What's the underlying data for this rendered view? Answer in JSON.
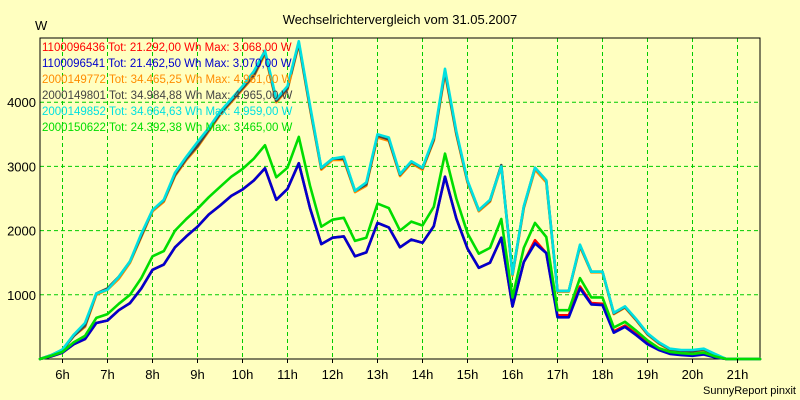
{
  "chart_data": {
    "type": "line",
    "title": "Wechselrichtervergleich vom 31.05.2007",
    "ylabel": "W",
    "footer": "SunnyReport pinxit",
    "xlim": [
      5.5,
      21.5
    ],
    "ylim": [
      0,
      5000
    ],
    "yticks": [
      1000,
      2000,
      3000,
      4000
    ],
    "xticks": [
      {
        "x": 6,
        "label": "6h"
      },
      {
        "x": 7,
        "label": "7h"
      },
      {
        "x": 8,
        "label": "8h"
      },
      {
        "x": 9,
        "label": "9h"
      },
      {
        "x": 10,
        "label": "10h"
      },
      {
        "x": 11,
        "label": "11h"
      },
      {
        "x": 12,
        "label": "12h"
      },
      {
        "x": 13,
        "label": "13h"
      },
      {
        "x": 14,
        "label": "14h"
      },
      {
        "x": 15,
        "label": "15h"
      },
      {
        "x": 16,
        "label": "16h"
      },
      {
        "x": 17,
        "label": "17h"
      },
      {
        "x": 18,
        "label": "18h"
      },
      {
        "x": 19,
        "label": "19h"
      },
      {
        "x": 20,
        "label": "20h"
      },
      {
        "x": 21,
        "label": "21h"
      }
    ],
    "grid": true,
    "legend": "top-left",
    "x": [
      5.5,
      5.75,
      6,
      6.25,
      6.5,
      6.75,
      7,
      7.25,
      7.5,
      7.75,
      8,
      8.25,
      8.5,
      8.75,
      9,
      9.25,
      9.5,
      9.75,
      10,
      10.25,
      10.5,
      10.75,
      11,
      11.25,
      11.5,
      11.75,
      12,
      12.25,
      12.5,
      12.75,
      13,
      13.25,
      13.5,
      13.75,
      14,
      14.25,
      14.5,
      14.75,
      15,
      15.25,
      15.5,
      15.75,
      16,
      16.25,
      16.5,
      16.75,
      17,
      17.25,
      17.5,
      17.75,
      18,
      18.25,
      18.5,
      18.75,
      19,
      19.25,
      19.5,
      19.75,
      20,
      20.25,
      20.5,
      20.75,
      21,
      21.25,
      21.5
    ],
    "series": [
      {
        "name": "1100096436 Tot: 21.292,00 Wh Max: 3.068,00 W",
        "color": "#ff0000",
        "values": [
          0,
          40,
          100,
          230,
          310,
          560,
          600,
          760,
          870,
          1100,
          1390,
          1470,
          1740,
          1910,
          2060,
          2250,
          2390,
          2540,
          2640,
          2780,
          2970,
          2480,
          2650,
          3050,
          2350,
          1790,
          1890,
          1910,
          1600,
          1660,
          2120,
          2050,
          1740,
          1860,
          1810,
          2070,
          2840,
          2190,
          1720,
          1420,
          1500,
          1890,
          820,
          1510,
          1850,
          1650,
          680,
          680,
          1130,
          870,
          860,
          430,
          520,
          390,
          250,
          150,
          90,
          70,
          60,
          80,
          30,
          0,
          0,
          0,
          0
        ]
      },
      {
        "name": "1100096541 Tot: 21.462,50 Wh Max: 3.070,00 W",
        "color": "#0000cc",
        "values": [
          0,
          40,
          100,
          230,
          310,
          560,
          600,
          760,
          870,
          1100,
          1390,
          1470,
          1740,
          1910,
          2060,
          2250,
          2390,
          2540,
          2640,
          2780,
          2970,
          2480,
          2650,
          3050,
          2350,
          1790,
          1890,
          1910,
          1600,
          1660,
          2120,
          2050,
          1740,
          1860,
          1810,
          2070,
          2840,
          2190,
          1720,
          1420,
          1500,
          1890,
          820,
          1510,
          1800,
          1650,
          650,
          650,
          1100,
          850,
          840,
          410,
          500,
          370,
          230,
          140,
          80,
          60,
          50,
          70,
          25,
          0,
          0,
          0,
          0
        ]
      },
      {
        "name": "2000149772 Tot: 34.465,25 Wh Max: 4.961,00 W",
        "color": "#ff8c00",
        "values": [
          0,
          60,
          140,
          360,
          500,
          1000,
          1080,
          1250,
          1500,
          1900,
          2300,
          2450,
          2850,
          3100,
          3300,
          3550,
          3800,
          4000,
          4200,
          4400,
          4750,
          4000,
          4200,
          4900,
          3900,
          2950,
          3100,
          3100,
          2600,
          2700,
          3450,
          3400,
          2850,
          3050,
          2950,
          3400,
          4450,
          3500,
          2750,
          2300,
          2450,
          3000,
          1300,
          2350,
          2950,
          2750,
          1050,
          1050,
          1750,
          1350,
          1350,
          700,
          800,
          600,
          380,
          240,
          140,
          120,
          110,
          140,
          60,
          0,
          0,
          0,
          0
        ]
      },
      {
        "name": "2000149801 Tot: 34.984,88 Wh Max: 4.965,00 W",
        "color": "#444444",
        "values": [
          0,
          60,
          140,
          360,
          520,
          1020,
          1100,
          1280,
          1520,
          1920,
          2320,
          2470,
          2870,
          3120,
          3320,
          3570,
          3820,
          4020,
          4220,
          4420,
          4780,
          4020,
          4220,
          4920,
          3920,
          2970,
          3120,
          3120,
          2620,
          2720,
          3480,
          3420,
          2870,
          3070,
          2970,
          3420,
          4480,
          3520,
          2770,
          2320,
          2470,
          3020,
          1320,
          2370,
          2980,
          2780,
          1060,
          1060,
          1770,
          1360,
          1360,
          710,
          810,
          610,
          390,
          250,
          150,
          130,
          120,
          150,
          70,
          0,
          0,
          0,
          0
        ]
      },
      {
        "name": "2000149852 Tot: 34.664,63 Wh Max: 4.959,00 W",
        "color": "#00e0e0",
        "values": [
          0,
          60,
          150,
          380,
          560,
          1020,
          1080,
          1280,
          1520,
          1950,
          2320,
          2480,
          2900,
          3150,
          3380,
          3600,
          3850,
          4050,
          4250,
          4480,
          4800,
          4050,
          4250,
          4950,
          3950,
          2980,
          3120,
          3150,
          2620,
          2750,
          3500,
          3450,
          2880,
          3080,
          2980,
          3450,
          4520,
          3550,
          2780,
          2320,
          2480,
          3000,
          1320,
          2380,
          2980,
          2780,
          1060,
          1060,
          1780,
          1360,
          1360,
          720,
          820,
          620,
          400,
          260,
          160,
          140,
          140,
          160,
          80,
          0,
          0,
          0,
          0
        ]
      },
      {
        "name": "2000150622 Tot: 24.392,38 Wh Max: 3.465,00 W",
        "color": "#00dd00",
        "values": [
          0,
          50,
          110,
          260,
          360,
          640,
          700,
          860,
          1000,
          1260,
          1600,
          1680,
          2000,
          2180,
          2340,
          2520,
          2680,
          2840,
          2960,
          3120,
          3330,
          2830,
          2980,
          3460,
          2700,
          2060,
          2170,
          2200,
          1840,
          1890,
          2420,
          2350,
          2000,
          2140,
          2080,
          2370,
          3200,
          2500,
          1960,
          1640,
          1730,
          2180,
          960,
          1730,
          2120,
          1900,
          760,
          760,
          1260,
          960,
          960,
          490,
          580,
          440,
          290,
          170,
          110,
          90,
          80,
          100,
          40,
          0,
          0,
          0,
          0
        ]
      }
    ]
  }
}
